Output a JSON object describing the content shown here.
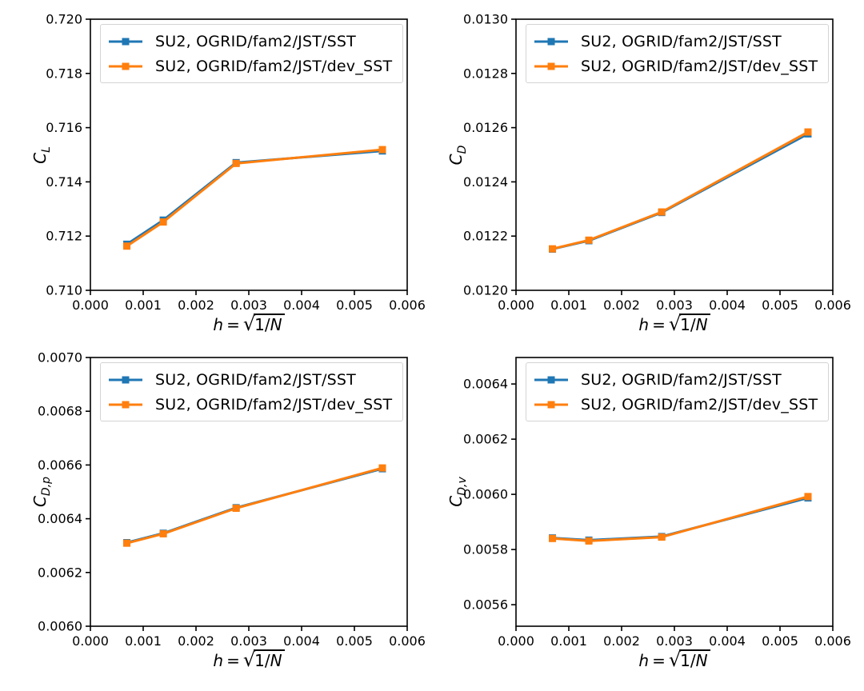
{
  "figure": {
    "background": "#ffffff",
    "xlabel": {
      "h": "h",
      "eq": "=",
      "radicand": "1/",
      "n": "N"
    }
  },
  "chart_data": [
    {
      "id": "CL",
      "type": "line",
      "ylabel_base": "C",
      "ylabel_sub": "L",
      "xlabel_text": "h = sqrt(1/N)",
      "xlim": [
        0,
        0.006
      ],
      "ylim": [
        0.71,
        0.72
      ],
      "xticks": [
        0,
        0.001,
        0.002,
        0.003,
        0.004,
        0.005,
        0.006
      ],
      "xtick_labels": [
        "0.000",
        "0.001",
        "0.002",
        "0.003",
        "0.004",
        "0.005",
        "0.006"
      ],
      "yticks": [
        0.71,
        0.712,
        0.714,
        0.716,
        0.718,
        0.72
      ],
      "ytick_labels": [
        "0.710",
        "0.712",
        "0.714",
        "0.716",
        "0.718",
        "0.720"
      ],
      "x": [
        0.00069,
        0.00138,
        0.00276,
        0.00553
      ],
      "series": [
        {
          "name": "SU2, OGRID/fam2/JST/SST",
          "color": "#1f77b4",
          "marker": "square",
          "values": [
            0.7117,
            0.71259,
            0.71471,
            0.71514
          ]
        },
        {
          "name": "SU2, OGRID/fam2/JST/dev_SST",
          "color": "#ff7f0e",
          "marker": "square",
          "values": [
            0.71163,
            0.71252,
            0.71468,
            0.71519
          ]
        }
      ],
      "legend_position": "upper left",
      "grid": false
    },
    {
      "id": "CD",
      "type": "line",
      "ylabel_base": "C",
      "ylabel_sub": "D",
      "xlabel_text": "h = sqrt(1/N)",
      "xlim": [
        0,
        0.006
      ],
      "ylim": [
        0.012,
        0.013
      ],
      "xticks": [
        0,
        0.001,
        0.002,
        0.003,
        0.004,
        0.005,
        0.006
      ],
      "xtick_labels": [
        "0.000",
        "0.001",
        "0.002",
        "0.003",
        "0.004",
        "0.005",
        "0.006"
      ],
      "yticks": [
        0.012,
        0.0122,
        0.0124,
        0.0126,
        0.0128,
        0.013
      ],
      "ytick_labels": [
        "0.0120",
        "0.0122",
        "0.0124",
        "0.0126",
        "0.0128",
        "0.0130"
      ],
      "x": [
        0.00069,
        0.00138,
        0.00276,
        0.00553
      ],
      "series": [
        {
          "name": "SU2, OGRID/fam2/JST/SST",
          "color": "#1f77b4",
          "marker": "square",
          "values": [
            0.012152,
            0.012183,
            0.012287,
            0.012577
          ]
        },
        {
          "name": "SU2, OGRID/fam2/JST/dev_SST",
          "color": "#ff7f0e",
          "marker": "square",
          "values": [
            0.012153,
            0.012185,
            0.012289,
            0.012584
          ]
        }
      ],
      "legend_position": "upper left",
      "grid": false
    },
    {
      "id": "CDp",
      "type": "line",
      "ylabel_base": "C",
      "ylabel_sub": "D,p",
      "xlabel_text": "h = sqrt(1/N)",
      "xlim": [
        0,
        0.006
      ],
      "ylim": [
        0.006,
        0.007
      ],
      "xticks": [
        0,
        0.001,
        0.002,
        0.003,
        0.004,
        0.005,
        0.006
      ],
      "xtick_labels": [
        "0.000",
        "0.001",
        "0.002",
        "0.003",
        "0.004",
        "0.005",
        "0.006"
      ],
      "yticks": [
        0.006,
        0.0062,
        0.0064,
        0.0066,
        0.0068,
        0.007
      ],
      "ytick_labels": [
        "0.0060",
        "0.0062",
        "0.0064",
        "0.0066",
        "0.0068",
        "0.0070"
      ],
      "x": [
        0.00069,
        0.00138,
        0.00276,
        0.00553
      ],
      "series": [
        {
          "name": "SU2, OGRID/fam2/JST/SST",
          "color": "#1f77b4",
          "marker": "square",
          "values": [
            0.006311,
            0.006346,
            0.006441,
            0.006586
          ]
        },
        {
          "name": "SU2, OGRID/fam2/JST/dev_SST",
          "color": "#ff7f0e",
          "marker": "square",
          "values": [
            0.006309,
            0.006344,
            0.006439,
            0.006589
          ]
        }
      ],
      "legend_position": "upper left",
      "grid": false
    },
    {
      "id": "CDv",
      "type": "line",
      "ylabel_base": "C",
      "ylabel_sub": "D,v",
      "xlabel_text": "h = sqrt(1/N)",
      "xlim": [
        0,
        0.006
      ],
      "ylim": [
        0.005522,
        0.006496
      ],
      "xticks": [
        0,
        0.001,
        0.002,
        0.003,
        0.004,
        0.005,
        0.006
      ],
      "xtick_labels": [
        "0.000",
        "0.001",
        "0.002",
        "0.003",
        "0.004",
        "0.005",
        "0.006"
      ],
      "yticks": [
        0.0056,
        0.0058,
        0.006,
        0.0062,
        0.0064
      ],
      "ytick_labels": [
        "0.0056",
        "0.0058",
        "0.0060",
        "0.0062",
        "0.0064"
      ],
      "x": [
        0.00069,
        0.00138,
        0.00276,
        0.00553
      ],
      "series": [
        {
          "name": "SU2, OGRID/fam2/JST/SST",
          "color": "#1f77b4",
          "marker": "square",
          "values": [
            0.005842,
            0.005834,
            0.005847,
            0.005987
          ]
        },
        {
          "name": "SU2, OGRID/fam2/JST/dev_SST",
          "color": "#ff7f0e",
          "marker": "square",
          "values": [
            0.00584,
            0.005831,
            0.005845,
            0.005992
          ]
        }
      ],
      "legend_position": "upper left",
      "grid": false
    }
  ]
}
